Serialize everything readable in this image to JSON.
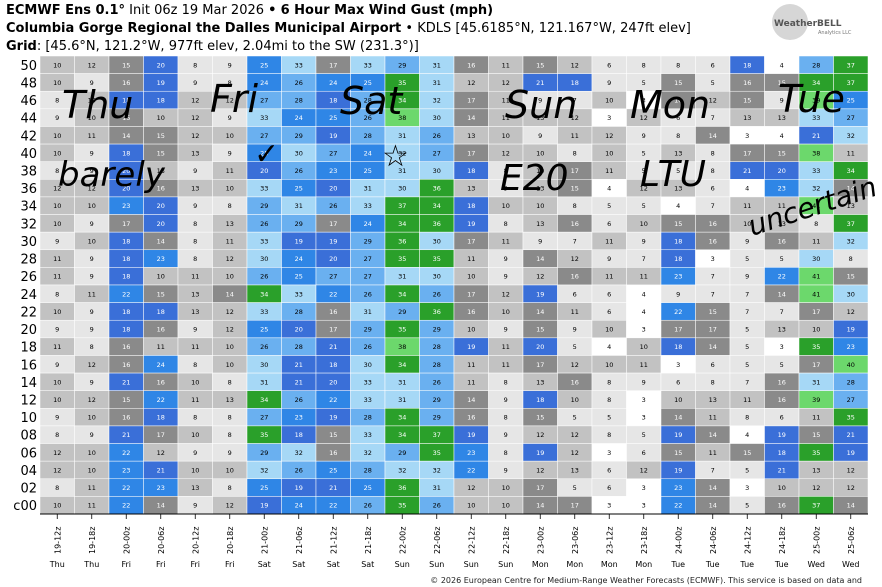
{
  "header": {
    "model": "ECMWF Ens 0.1°",
    "init": "Init 06z 19 Mar 2026",
    "bullet": "•",
    "product": "6 Hour Max Wind Gust (mph)",
    "site": "Columbia Gorge Regional the Dalles Municipal Airport",
    "site_meta": "• KDLS [45.6185°N, 121.167°W, 247ft elev]",
    "grid_label": "Grid",
    "grid_meta": ": [45.6°N, 121.2°W, 977ft elev, 2.04mi to the SW (231.3°)]"
  },
  "logo": {
    "text": "WeatherBELL",
    "sub": "Analytics LLC"
  },
  "footer": "© 2026 European Centre for Medium-Range Weather Forecasts (ECMWF). This service is based on data and",
  "annotations": {
    "days": [
      "Thu",
      "Fri",
      "Sat",
      "Sun",
      "Mon",
      "Tue"
    ],
    "notes": [
      "barely",
      "✓",
      "☆",
      "E20",
      "LTU",
      "uncertain"
    ]
  },
  "chart_data": {
    "type": "heatmap",
    "ylabel_rows": [
      "50",
      "48",
      "46",
      "44",
      "42",
      "40",
      "38",
      "36",
      "34",
      "32",
      "30",
      "28",
      "26",
      "24",
      "22",
      "20",
      "18",
      "16",
      "14",
      "12",
      "10",
      "08",
      "06",
      "04",
      "02",
      "c00"
    ],
    "x": [
      "19-12z",
      "19-18z",
      "20-00z",
      "20-06z",
      "20-12z",
      "20-18z",
      "21-00z",
      "21-06z",
      "21-12z",
      "21-18z",
      "22-00z",
      "22-06z",
      "22-12z",
      "22-18z",
      "23-00z",
      "23-06z",
      "23-12z",
      "23-18z",
      "24-00z",
      "24-06z",
      "24-12z",
      "24-18z",
      "25-00z",
      "25-06z"
    ],
    "day_labels": [
      "Thu",
      "Thu",
      "Fri",
      "Fri",
      "Fri",
      "Fri",
      "Sat",
      "Sat",
      "Sat",
      "Sat",
      "Sun",
      "Sun",
      "Sun",
      "Sun",
      "Mon",
      "Mon",
      "Mon",
      "Mon",
      "Tue",
      "Tue",
      "Tue",
      "Tue",
      "Wed",
      "Wed"
    ],
    "member_ranges": {
      "19-12z": [
        8,
        12
      ],
      "19-18z": [
        8,
        12
      ],
      "20-00z": [
        14,
        23
      ],
      "20-06z": [
        10,
        24
      ],
      "20-12z": [
        8,
        14
      ],
      "20-18z": [
        8,
        14
      ],
      "21-00z": [
        18,
        35
      ],
      "21-06z": [
        18,
        33
      ],
      "21-12z": [
        15,
        28
      ],
      "21-18z": [
        24,
        34
      ],
      "22-00z": [
        28,
        38
      ],
      "22-06z": [
        25,
        37
      ],
      "22-12z": [
        10,
        24
      ],
      "22-18z": [
        8,
        12
      ],
      "23-00z": [
        8,
        22
      ],
      "23-06z": [
        5,
        20
      ],
      "23-12z": [
        2,
        12
      ],
      "23-18z": [
        3,
        12
      ],
      "24-00z": [
        3,
        24
      ],
      "24-06z": [
        3,
        17
      ],
      "24-12z": [
        2,
        21
      ],
      "24-18z": [
        2,
        24
      ],
      "25-00z": [
        8,
        42
      ],
      "25-06z": [
        8,
        44
      ]
    },
    "color_scale": {
      "below_5": "#ffffff",
      "5_10": "#e6e6e6",
      "10_14": "#c2c2c2",
      "14_18": "#8a8a8a",
      "18_22": "#3a6fd8",
      "22_26": "#2f86e6",
      "26_30": "#6ab0f0",
      "30_34": "#a6d8f6",
      "34_38": "#2aa02a",
      "38_plus": "#6cd86c"
    },
    "title": "6 Hour Max Wind Gust (mph)"
  }
}
